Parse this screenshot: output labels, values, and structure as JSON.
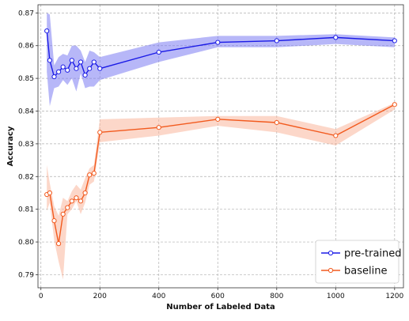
{
  "chart_data": {
    "type": "line",
    "title": "",
    "xlabel": "Number of Labeled Data",
    "ylabel": "Accuracy",
    "xlim": [
      -10,
      1230
    ],
    "ylim": [
      0.786,
      0.8725
    ],
    "xticks": [
      0,
      200,
      400,
      600,
      800,
      1000,
      1200
    ],
    "yticks": [
      0.79,
      0.8,
      0.81,
      0.82,
      0.83,
      0.84,
      0.85,
      0.86,
      0.87
    ],
    "grid": true,
    "legend_position": "bottom-right",
    "series": [
      {
        "name": "pre-trained",
        "color": "#1a1ae6",
        "band_color": "#7b7bf2",
        "points": [
          {
            "x": 20,
            "y": 0.8645,
            "lo": 0.852,
            "hi": 0.87
          },
          {
            "x": 30,
            "y": 0.8555,
            "lo": 0.8415,
            "hi": 0.8695
          },
          {
            "x": 45,
            "y": 0.8505,
            "lo": 0.847,
            "hi": 0.854
          },
          {
            "x": 60,
            "y": 0.852,
            "lo": 0.8475,
            "hi": 0.8565
          },
          {
            "x": 75,
            "y": 0.8535,
            "lo": 0.8495,
            "hi": 0.8575
          },
          {
            "x": 90,
            "y": 0.8525,
            "lo": 0.848,
            "hi": 0.857
          },
          {
            "x": 105,
            "y": 0.8555,
            "lo": 0.85,
            "hi": 0.86
          },
          {
            "x": 120,
            "y": 0.853,
            "lo": 0.846,
            "hi": 0.86
          },
          {
            "x": 135,
            "y": 0.855,
            "lo": 0.8515,
            "hi": 0.8585
          },
          {
            "x": 150,
            "y": 0.851,
            "lo": 0.847,
            "hi": 0.855
          },
          {
            "x": 165,
            "y": 0.853,
            "lo": 0.8475,
            "hi": 0.8585
          },
          {
            "x": 180,
            "y": 0.855,
            "lo": 0.8475,
            "hi": 0.858
          },
          {
            "x": 200,
            "y": 0.853,
            "lo": 0.8495,
            "hi": 0.8565
          },
          {
            "x": 400,
            "y": 0.858,
            "lo": 0.855,
            "hi": 0.861
          },
          {
            "x": 600,
            "y": 0.861,
            "lo": 0.8595,
            "hi": 0.863
          },
          {
            "x": 800,
            "y": 0.8615,
            "lo": 0.8595,
            "hi": 0.863
          },
          {
            "x": 1000,
            "y": 0.8625,
            "lo": 0.8605,
            "hi": 0.8635
          },
          {
            "x": 1200,
            "y": 0.8615,
            "lo": 0.8595,
            "hi": 0.8625
          }
        ]
      },
      {
        "name": "baseline",
        "color": "#f25a1e",
        "band_color": "#f9b69c",
        "points": [
          {
            "x": 20,
            "y": 0.8145,
            "lo": 0.8095,
            "hi": 0.8235
          },
          {
            "x": 30,
            "y": 0.815,
            "lo": 0.812,
            "hi": 0.818
          },
          {
            "x": 45,
            "y": 0.8065,
            "lo": 0.8005,
            "hi": 0.811
          },
          {
            "x": 60,
            "y": 0.7995,
            "lo": 0.794,
            "hi": 0.808
          },
          {
            "x": 75,
            "y": 0.8085,
            "lo": 0.7885,
            "hi": 0.8135
          },
          {
            "x": 90,
            "y": 0.8105,
            "lo": 0.8085,
            "hi": 0.8125
          },
          {
            "x": 105,
            "y": 0.8125,
            "lo": 0.81,
            "hi": 0.8155
          },
          {
            "x": 120,
            "y": 0.8135,
            "lo": 0.8125,
            "hi": 0.8175
          },
          {
            "x": 135,
            "y": 0.8125,
            "lo": 0.8085,
            "hi": 0.816
          },
          {
            "x": 150,
            "y": 0.815,
            "lo": 0.812,
            "hi": 0.8195
          },
          {
            "x": 165,
            "y": 0.8205,
            "lo": 0.8175,
            "hi": 0.8225
          },
          {
            "x": 180,
            "y": 0.821,
            "lo": 0.8185,
            "hi": 0.8235
          },
          {
            "x": 200,
            "y": 0.8335,
            "lo": 0.8305,
            "hi": 0.8375
          },
          {
            "x": 400,
            "y": 0.835,
            "lo": 0.8325,
            "hi": 0.838
          },
          {
            "x": 600,
            "y": 0.8375,
            "lo": 0.8355,
            "hi": 0.8385
          },
          {
            "x": 800,
            "y": 0.8365,
            "lo": 0.8335,
            "hi": 0.8385
          },
          {
            "x": 1000,
            "y": 0.8325,
            "lo": 0.8295,
            "hi": 0.8345
          },
          {
            "x": 1200,
            "y": 0.842,
            "lo": 0.8405,
            "hi": 0.8425
          }
        ]
      }
    ]
  }
}
